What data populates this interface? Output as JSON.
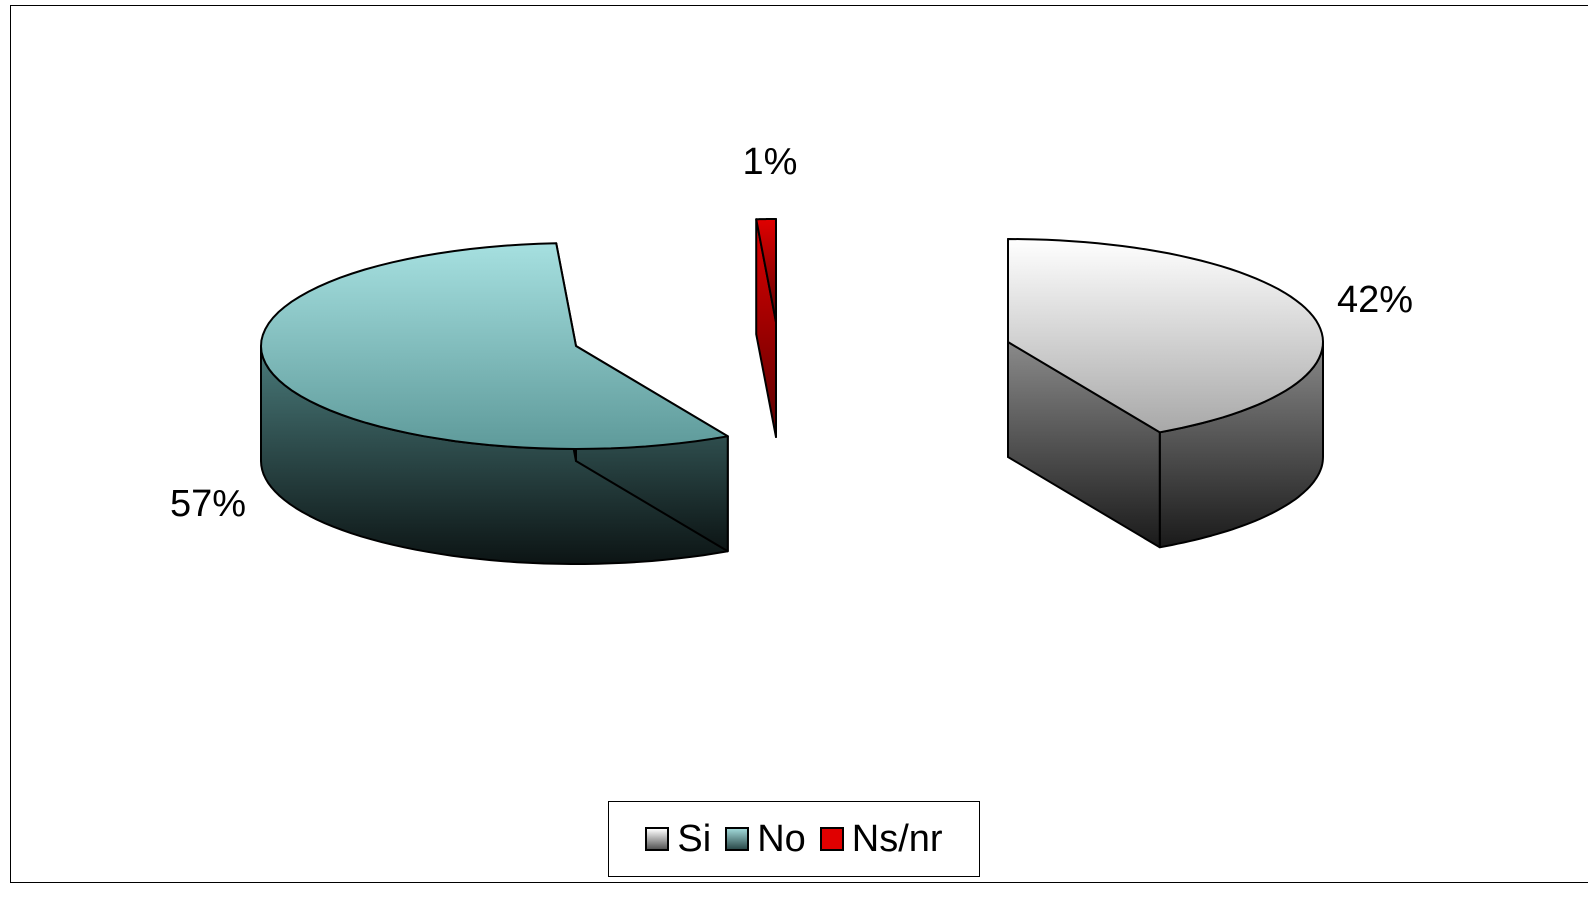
{
  "chart_data": {
    "type": "pie",
    "style": "3d-exploded",
    "slices": [
      {
        "label": "Si",
        "value": 42,
        "data_label": "42%",
        "color": "#d0d0d0"
      },
      {
        "label": "No",
        "value": 57,
        "data_label": "57%",
        "color": "#7fbcbc"
      },
      {
        "label": "Ns/nr",
        "value": 1,
        "data_label": "1%",
        "color": "#cc0000"
      }
    ],
    "legend": {
      "position": "bottom",
      "entries": [
        "Si",
        "No",
        "Ns/nr"
      ]
    }
  }
}
